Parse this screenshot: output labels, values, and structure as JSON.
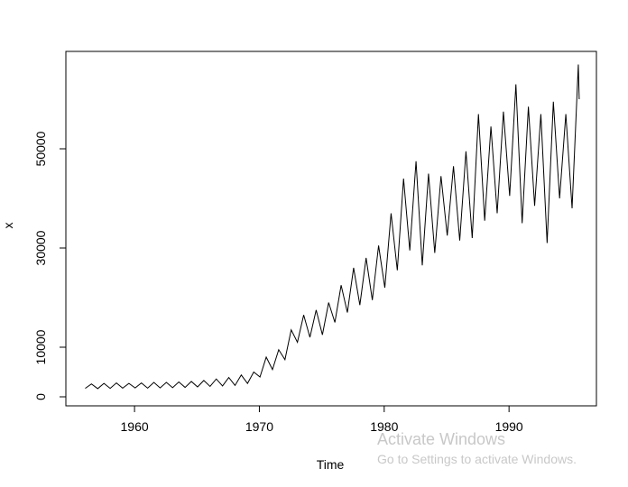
{
  "chart_data": {
    "type": "line",
    "xlabel": "Time",
    "ylabel": "x",
    "x": [
      1956.05,
      1956.55,
      1957.05,
      1957.55,
      1958.05,
      1958.55,
      1959.05,
      1959.55,
      1960.05,
      1960.55,
      1961.05,
      1961.55,
      1962.05,
      1962.55,
      1963.05,
      1963.55,
      1964.05,
      1964.55,
      1965.05,
      1965.55,
      1966.05,
      1966.55,
      1967.05,
      1967.55,
      1968.05,
      1968.55,
      1969.05,
      1969.55,
      1970.05,
      1970.55,
      1971.05,
      1971.55,
      1972.05,
      1972.55,
      1973.05,
      1973.55,
      1974.05,
      1974.55,
      1975.05,
      1975.55,
      1976.05,
      1976.55,
      1977.05,
      1977.55,
      1978.05,
      1978.55,
      1979.05,
      1979.55,
      1980.05,
      1980.55,
      1981.05,
      1981.55,
      1982.05,
      1982.55,
      1983.05,
      1983.55,
      1984.05,
      1984.55,
      1985.05,
      1985.55,
      1986.05,
      1986.55,
      1987.05,
      1987.55,
      1988.05,
      1988.55,
      1989.05,
      1989.55,
      1990.05,
      1990.55,
      1991.05,
      1991.55,
      1992.05,
      1992.55,
      1993.05,
      1993.55,
      1994.05,
      1994.55,
      1995.05,
      1995.55,
      1995.62
    ],
    "values": [
      1700,
      2600,
      1650,
      2700,
      1700,
      2800,
      1750,
      2700,
      1800,
      2800,
      1750,
      2900,
      1800,
      2900,
      1850,
      3000,
      1900,
      3100,
      2000,
      3300,
      2100,
      3600,
      2200,
      3900,
      2300,
      4400,
      2700,
      5000,
      4000,
      8000,
      5500,
      9500,
      7500,
      13500,
      11000,
      16500,
      12000,
      17500,
      12500,
      19000,
      15000,
      22500,
      17000,
      26000,
      18500,
      28000,
      19500,
      30500,
      22000,
      37000,
      25500,
      44000,
      29500,
      47500,
      26500,
      45000,
      29000,
      44500,
      32500,
      46500,
      31500,
      49500,
      32000,
      57000,
      35500,
      54500,
      37000,
      57500,
      40500,
      63000,
      35000,
      58500,
      38500,
      57000,
      31000,
      59500,
      40000,
      57000,
      38000,
      67000,
      60000
    ],
    "color": "#000000",
    "xlim": [
      1954.5,
      1997.0
    ],
    "xticks": [
      1960,
      1970,
      1980,
      1990
    ],
    "ylim": [
      -1818,
      69636
    ],
    "yticks": [
      0,
      10000,
      30000,
      50000
    ]
  },
  "watermark": {
    "title": "Activate Windows",
    "subtitle": "Go to Settings to activate Windows."
  }
}
